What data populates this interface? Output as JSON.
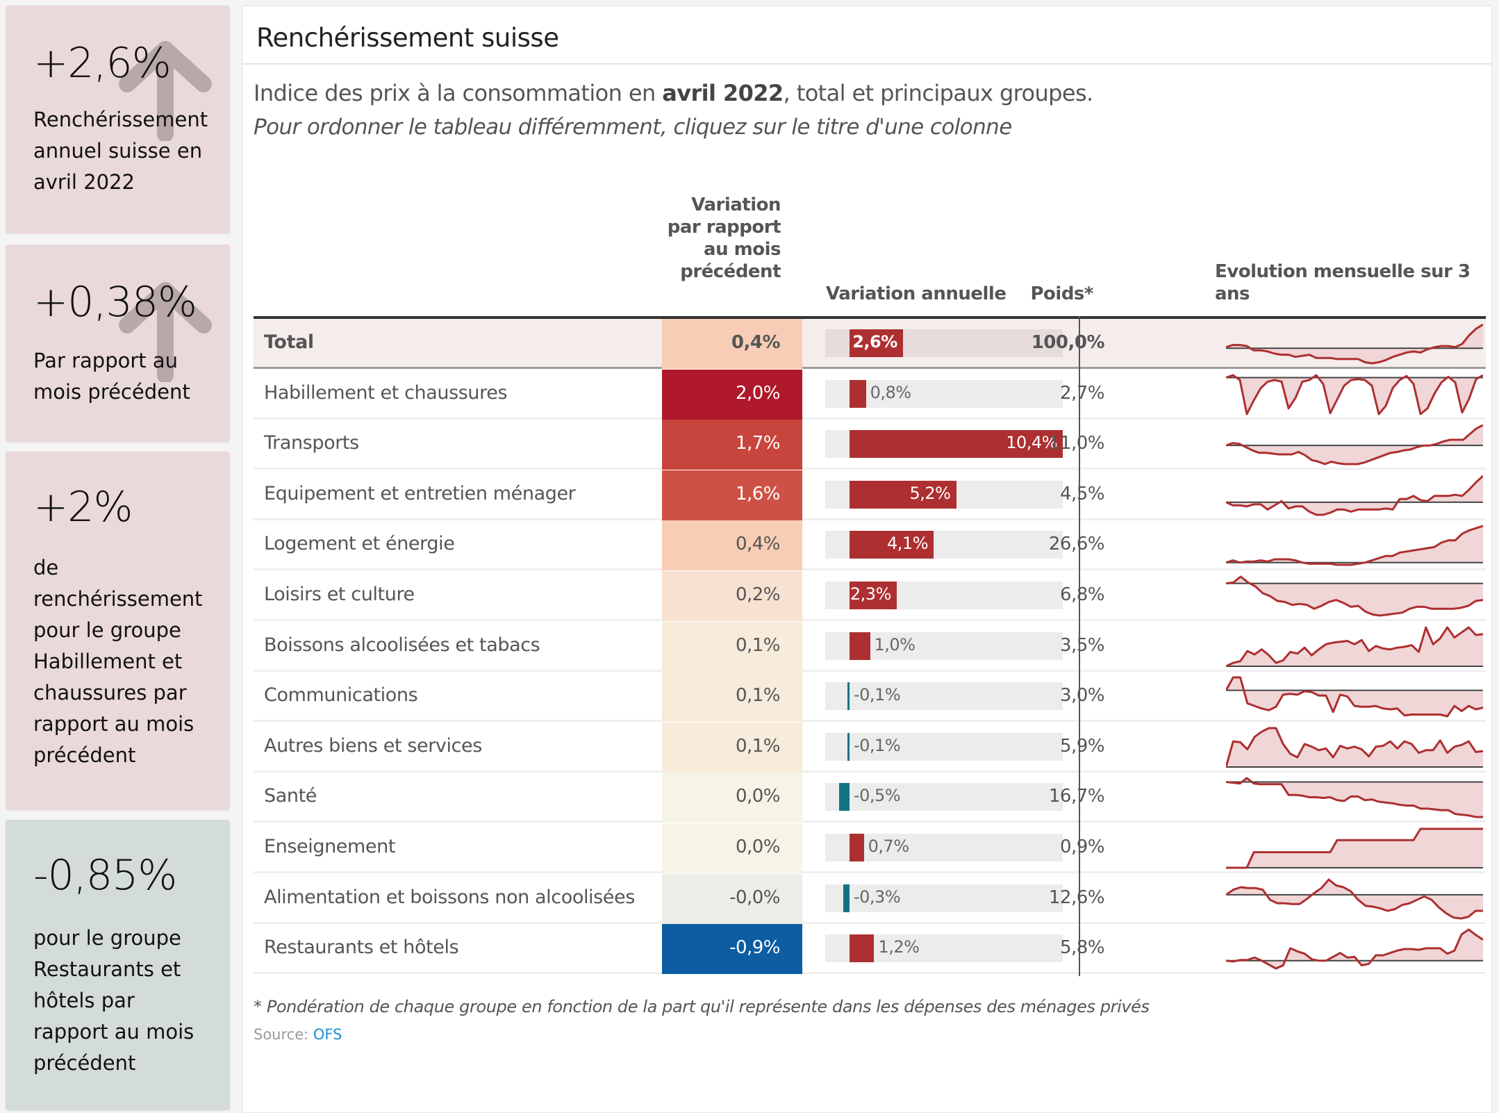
{
  "cards": [
    {
      "value": "+2,6%",
      "description": "Renchérissement annuel suisse en avril 2022",
      "icon": "arrow-up-icon",
      "tone": "positive"
    },
    {
      "value": "+0,38%",
      "description": "Par rapport au mois précédent",
      "icon": "arrow-up-icon",
      "tone": "positive"
    },
    {
      "value": "+2%",
      "description": "de renchérissement pour le groupe Habillement et chaussures par rapport au mois précédent",
      "tone": "positive"
    },
    {
      "value": "-0,85%",
      "description": "pour le groupe Restaurants et hôtels par rapport au mois précédent",
      "tone": "negative"
    }
  ],
  "panel": {
    "title": "Renchérissement suisse",
    "subtitle_before": "Indice des prix à la consommation en ",
    "subtitle_bold": "avril 2022",
    "subtitle_after": ", total et principaux groupes.",
    "hint": "Pour ordonner le tableau différemment, cliquez sur le titre d'une colonne",
    "footnote": "* Pondération de chaque groupe en fonction de la part qu'il représente dans les dépenses des ménages privés",
    "source_label": "Source: ",
    "source_link": "OFS"
  },
  "colors": {
    "bar_positive": "#ad2f31",
    "bar_negative": "#0f7481",
    "spark_line": "#ad2f31",
    "spark_fill": "#f0d6d6",
    "monthly_scale": {
      "2.0": "#b0182b",
      "1.7": "#c7453c",
      "1.6": "#ce5145",
      "0.4": "#f7cdb5",
      "0.2": "#f7e1d1",
      "0.1": "#f7ebdb",
      "0.0": "#f6f4e6",
      "-0.0": "#ebede6",
      "-0.9": "#0c5da1"
    }
  },
  "chart_data": {
    "type": "table",
    "title": "Renchérissement suisse",
    "columns": [
      "",
      "Variation par rapport au mois précédent",
      "Variation annuelle",
      "Poids*",
      "Evolution mensuelle sur 3 ans"
    ],
    "annual_axis_range": [
      -0.5,
      10.4
    ],
    "rows": [
      {
        "label": "Total",
        "monthly": 0.4,
        "monthly_text": "0,4%",
        "annual": 2.6,
        "annual_text": "2,6%",
        "weight_text": "100,0%",
        "total": true,
        "spark": [
          0.1,
          0.3,
          0.3,
          0.2,
          -0.2,
          -0.2,
          -0.3,
          -0.5,
          -0.6,
          -0.6,
          -0.8,
          -0.7,
          -0.6,
          -0.9,
          -0.9,
          -0.9,
          -1.0,
          -1.0,
          -1.0,
          -1.0,
          -1.3,
          -1.4,
          -1.3,
          -1.1,
          -0.8,
          -0.6,
          -0.4,
          -0.3,
          -0.4,
          -0.1,
          0.1,
          0.2,
          0.2,
          0.1,
          0.4,
          1.2,
          1.8,
          2.2
        ]
      },
      {
        "label": "Habillement et chaussures",
        "monthly": 2.0,
        "monthly_text": "2,0%",
        "annual": 0.8,
        "annual_text": "0,8%",
        "weight_text": "2,7%",
        "spark": [
          0.0,
          0.3,
          -0.3,
          -4.5,
          -2.8,
          -1.3,
          -0.5,
          -0.3,
          -0.5,
          -3.8,
          -2.5,
          -0.5,
          -0.3,
          0.3,
          -0.8,
          -4.4,
          -2.7,
          -1.0,
          -0.3,
          -0.2,
          -0.3,
          -1.0,
          -4.5,
          -3.5,
          -1.3,
          -0.3,
          0.2,
          -0.8,
          -4.5,
          -3.8,
          -2.0,
          -0.6,
          0.1,
          -0.6,
          -4.3,
          -2.6,
          -0.2,
          0.3
        ]
      },
      {
        "label": "Transports",
        "monthly": 1.7,
        "monthly_text": "1,7%",
        "annual": 10.4,
        "annual_text": "10,4%",
        "weight_text": "11,0%",
        "spark": [
          0.0,
          0.3,
          0.2,
          -0.2,
          -0.6,
          -0.9,
          -0.9,
          -1.0,
          -1.1,
          -1.1,
          -1.1,
          -0.8,
          -1.2,
          -1.8,
          -2.0,
          -2.3,
          -2.0,
          -2.2,
          -2.3,
          -2.3,
          -2.3,
          -2.1,
          -1.8,
          -1.5,
          -1.2,
          -0.9,
          -0.8,
          -0.6,
          -0.5,
          -0.2,
          0.0,
          0.0,
          0.2,
          0.5,
          0.7,
          0.7,
          0.7,
          1.4,
          2.1,
          2.5
        ]
      },
      {
        "label": "Equipement et entretien ménager",
        "monthly": 1.6,
        "monthly_text": "1,6%",
        "annual": 5.2,
        "annual_text": "5,2%",
        "weight_text": "4,5%",
        "spark": [
          0.0,
          -0.3,
          -0.3,
          -0.4,
          -0.2,
          -0.2,
          -0.7,
          -0.3,
          0.1,
          -0.6,
          -0.4,
          -0.4,
          -0.9,
          -1.2,
          -1.2,
          -1.0,
          -0.7,
          -0.7,
          -0.9,
          -0.7,
          -0.7,
          -0.7,
          -0.7,
          -0.6,
          -0.7,
          0.3,
          0.3,
          0.6,
          0.2,
          0.1,
          0.6,
          0.6,
          0.6,
          0.7,
          0.6,
          1.2,
          1.9,
          2.5
        ]
      },
      {
        "label": "Logement et énergie",
        "monthly": 0.4,
        "monthly_text": "0,4%",
        "annual": 4.1,
        "annual_text": "4,1%",
        "weight_text": "26,6%",
        "spark": [
          0.0,
          0.2,
          0.0,
          0.1,
          0.1,
          0.2,
          0.1,
          0.3,
          0.3,
          0.3,
          0.2,
          0.0,
          -0.1,
          -0.1,
          -0.1,
          -0.1,
          -0.2,
          -0.2,
          -0.2,
          -0.1,
          0.0,
          0.2,
          0.4,
          0.6,
          0.6,
          0.9,
          1.0,
          1.1,
          1.2,
          1.3,
          1.4,
          1.8,
          2.0,
          2.0,
          2.6,
          2.9,
          3.1,
          3.3
        ]
      },
      {
        "label": "Loisirs et culture",
        "monthly": 0.2,
        "monthly_text": "0,2%",
        "annual": 2.3,
        "annual_text": "2,3%",
        "weight_text": "6,8%",
        "spark": [
          0.0,
          0.1,
          0.7,
          0.1,
          -0.3,
          -1.0,
          -1.3,
          -1.8,
          -1.9,
          -2.2,
          -2.1,
          -2.2,
          -2.6,
          -2.3,
          -1.9,
          -1.7,
          -2.0,
          -2.4,
          -2.3,
          -2.9,
          -3.2,
          -3.3,
          -3.2,
          -3.1,
          -3.0,
          -2.6,
          -2.4,
          -2.4,
          -2.6,
          -2.6,
          -2.6,
          -2.6,
          -2.5,
          -2.3,
          -1.8,
          -1.7
        ]
      },
      {
        "label": "Boissons alcoolisées et tabacs",
        "monthly": 0.1,
        "monthly_text": "0,1%",
        "annual": 1.0,
        "annual_text": "1,0%",
        "weight_text": "3,5%",
        "spark": [
          0.0,
          0.4,
          0.6,
          1.8,
          1.4,
          2.0,
          1.3,
          0.4,
          0.7,
          1.7,
          1.5,
          2.2,
          1.3,
          2.0,
          2.6,
          2.8,
          2.9,
          3.0,
          2.6,
          3.1,
          1.8,
          2.4,
          2.1,
          2.0,
          2.2,
          2.3,
          2.5,
          1.7,
          4.6,
          2.6,
          3.3,
          4.6,
          3.4,
          4.0,
          4.6,
          3.7,
          3.8
        ]
      },
      {
        "label": "Communications",
        "monthly": 0.1,
        "monthly_text": "0,1%",
        "annual": -0.1,
        "annual_text": "-0,1%",
        "weight_text": "3,0%",
        "spark": [
          0.0,
          1.5,
          1.5,
          -1.5,
          -1.8,
          -2.1,
          -2.3,
          -1.9,
          -0.5,
          -0.4,
          -0.5,
          -0.1,
          -0.2,
          -0.6,
          -0.6,
          -2.5,
          -0.5,
          -0.7,
          -1.8,
          -1.9,
          -1.9,
          -1.8,
          -2.1,
          -2.2,
          -2.1,
          -2.9,
          -2.8,
          -2.8,
          -2.8,
          -2.8,
          -2.8,
          -3.0,
          -1.8,
          -2.4,
          -1.8,
          -2.2,
          -2.0
        ]
      },
      {
        "label": "Autres biens et services",
        "monthly": 0.1,
        "monthly_text": "0,1%",
        "annual": -0.1,
        "annual_text": "-0,1%",
        "weight_text": "5,9%",
        "spark": [
          0.0,
          2.9,
          2.8,
          2.0,
          3.4,
          4.0,
          4.4,
          4.4,
          2.6,
          1.5,
          1.1,
          2.6,
          2.3,
          1.9,
          2.1,
          1.1,
          2.4,
          2.1,
          2.3,
          2.0,
          1.2,
          2.3,
          2.4,
          2.9,
          2.1,
          2.9,
          2.6,
          1.6,
          1.9,
          1.9,
          3.0,
          1.6,
          2.3,
          2.5,
          2.9,
          1.7,
          1.8
        ]
      },
      {
        "label": "Santé",
        "monthly": 0.0,
        "monthly_text": "0,0%",
        "annual": -0.5,
        "annual_text": "-0,5%",
        "weight_text": "16,7%",
        "spark": [
          0.0,
          -0.1,
          -0.2,
          0.5,
          -0.2,
          -0.3,
          -0.3,
          -0.3,
          -0.3,
          -1.7,
          -1.7,
          -1.8,
          -2.0,
          -2.0,
          -2.1,
          -2.0,
          -2.4,
          -2.5,
          -1.9,
          -1.9,
          -2.4,
          -2.3,
          -2.6,
          -2.7,
          -2.8,
          -3.0,
          -3.1,
          -3.1,
          -3.5,
          -3.5,
          -3.6,
          -3.7,
          -3.7,
          -4.2,
          -4.3,
          -4.4,
          -4.6,
          -4.6
        ]
      },
      {
        "label": "Enseignement",
        "monthly": 0.0,
        "monthly_text": "0,0%",
        "annual": 0.7,
        "annual_text": "0,7%",
        "weight_text": "0,9%",
        "spark": [
          0.0,
          0.0,
          0.0,
          0.0,
          1.8,
          1.8,
          1.8,
          1.8,
          1.8,
          1.8,
          1.8,
          1.8,
          1.8,
          1.8,
          1.8,
          1.8,
          3.2,
          3.2,
          3.2,
          3.2,
          3.2,
          3.2,
          3.2,
          3.2,
          3.2,
          3.2,
          3.2,
          3.2,
          4.5,
          4.5,
          4.5,
          4.5,
          4.5,
          4.5,
          4.5,
          4.5,
          4.5,
          4.5
        ]
      },
      {
        "label": "Alimentation et boissons non alcoolisées",
        "monthly": -0.0,
        "monthly_text": "-0,0%",
        "annual": -0.3,
        "annual_text": "-0,3%",
        "weight_text": "12,6%",
        "spark": [
          0.0,
          0.6,
          0.9,
          0.8,
          0.8,
          0.6,
          -0.6,
          -1.0,
          -1.0,
          -1.1,
          -1.1,
          -0.5,
          0.2,
          0.8,
          1.8,
          1.1,
          0.9,
          0.4,
          -0.6,
          -1.3,
          -1.4,
          -1.6,
          -1.9,
          -1.7,
          -1.2,
          -1.0,
          -0.6,
          -0.2,
          -0.6,
          -1.5,
          -2.2,
          -2.7,
          -2.8,
          -2.6,
          -1.9,
          -1.9
        ]
      },
      {
        "label": "Restaurants et hôtels",
        "monthly": -0.9,
        "monthly_text": "-0,9%",
        "annual": 1.2,
        "annual_text": "1,2%",
        "weight_text": "5,8%",
        "spark": [
          0.0,
          -0.1,
          0.1,
          0.1,
          0.4,
          0.0,
          -0.5,
          -1.0,
          -0.6,
          1.6,
          1.2,
          0.9,
          0.2,
          0.0,
          0.0,
          0.5,
          1.0,
          0.4,
          0.5,
          -0.6,
          -0.4,
          0.7,
          0.7,
          1.0,
          1.3,
          1.5,
          1.5,
          1.4,
          1.6,
          1.6,
          1.6,
          0.9,
          1.3,
          3.4,
          4.0,
          3.3,
          2.7
        ]
      }
    ]
  }
}
